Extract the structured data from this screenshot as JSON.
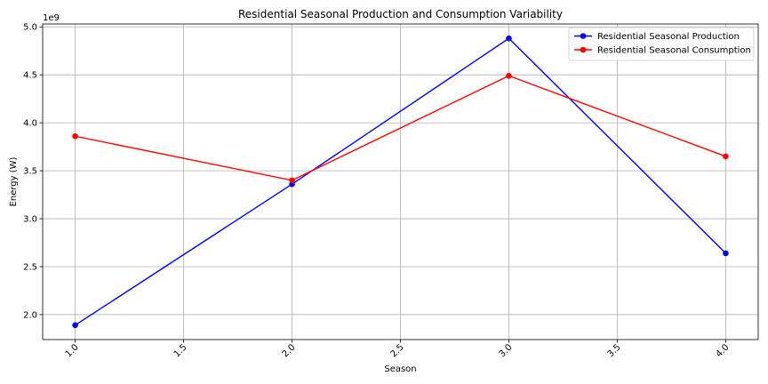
{
  "chart_data": {
    "type": "line",
    "title": "Residential Seasonal Production and Consumption Variability",
    "xlabel": "Season",
    "ylabel": "Energy (W)",
    "y_offset_label": "1e9",
    "x": [
      1.0,
      2.0,
      3.0,
      4.0
    ],
    "xlim": [
      0.85,
      4.15
    ],
    "ylim": [
      1.74,
      5.03
    ],
    "x_ticks": [
      1.0,
      1.5,
      2.0,
      2.5,
      3.0,
      3.5,
      4.0
    ],
    "x_tick_labels": [
      "1.0",
      "1.5",
      "2.0",
      "2.5",
      "3.0",
      "3.5",
      "4.0"
    ],
    "y_ticks": [
      2.0,
      2.5,
      3.0,
      3.5,
      4.0,
      4.5,
      5.0
    ],
    "y_tick_labels": [
      "2.0",
      "2.5",
      "3.0",
      "3.5",
      "4.0",
      "4.5",
      "5.0"
    ],
    "grid": true,
    "legend_position": "top-right",
    "series": [
      {
        "name": "Residential Seasonal Production",
        "color": "#0000ff",
        "values": [
          1.89,
          3.36,
          4.88,
          2.64
        ]
      },
      {
        "name": "Residential Seasonal Consumption",
        "color": "#ff0000",
        "values": [
          3.86,
          3.4,
          4.49,
          3.65
        ]
      }
    ]
  }
}
